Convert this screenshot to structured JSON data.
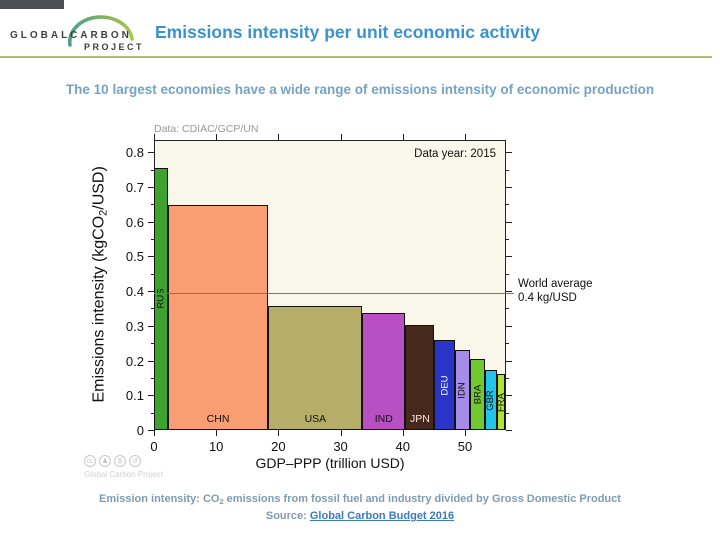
{
  "header": {
    "logo_word1": "GLOBAL",
    "logo_word2": "CARBON",
    "logo_word3": "PROJECT",
    "title": "Emissions intensity per unit economic activity",
    "rule_color": "#b6bd72",
    "title_color": "#3b93cd"
  },
  "subtitle": "The 10 largest economies have a wide range of emissions intensity of economic production",
  "chart_data": {
    "type": "bar",
    "variant": "variable-width-mekko",
    "data_note": "Data: CDIAC/GCP/UN",
    "year_note": "Data year: 2015",
    "xlabel": "GDP–PPP (trillion USD)",
    "ylabel_pre": "Emissions intensity (kgCO",
    "ylabel_sub": "2",
    "ylabel_post": "/USD)",
    "plot_bg": "#f8f7e9",
    "xlim": [
      0,
      56.6
    ],
    "ylim": [
      0,
      0.835
    ],
    "x_ticks": [
      {
        "value": 0,
        "label": "0"
      },
      {
        "value": 10,
        "label": "10"
      },
      {
        "value": 20,
        "label": "20"
      },
      {
        "value": 30,
        "label": "30"
      },
      {
        "value": 40,
        "label": "40"
      },
      {
        "value": 50,
        "label": "50"
      }
    ],
    "y_ticks": [
      {
        "value": 0,
        "label": "0"
      },
      {
        "value": 0.1,
        "label": "0.1"
      },
      {
        "value": 0.2,
        "label": "0.2"
      },
      {
        "value": 0.3,
        "label": "0.3"
      },
      {
        "value": 0.4,
        "label": "0.4"
      },
      {
        "value": 0.5,
        "label": "0.5"
      },
      {
        "value": 0.6,
        "label": "0.6"
      },
      {
        "value": 0.7,
        "label": "0.7"
      },
      {
        "value": 0.8,
        "label": "0.8"
      }
    ],
    "y_minor_ticks": [
      0.05,
      0.15,
      0.25,
      0.35,
      0.45,
      0.55,
      0.65,
      0.75
    ],
    "world_average": {
      "value": 0.395,
      "label_line1": "World average",
      "label_line2": "0.4 kg/USD"
    },
    "series": [
      {
        "code": "RUS",
        "x_start": 0,
        "x_end": 2.2,
        "value": 0.755,
        "color": "#3da32e",
        "label_orientation": "vertical",
        "label_color": "#111111"
      },
      {
        "code": "CHN",
        "x_start": 2.2,
        "x_end": 18.4,
        "value": 0.648,
        "color": "#f89e72",
        "label_orientation": "horizontal",
        "label_color": "#111111"
      },
      {
        "code": "USA",
        "x_start": 18.4,
        "x_end": 33.5,
        "value": 0.357,
        "color": "#b6ad68",
        "label_orientation": "horizontal",
        "label_color": "#111111"
      },
      {
        "code": "IND",
        "x_start": 33.5,
        "x_end": 40.4,
        "value": 0.337,
        "color": "#b84fc3",
        "label_orientation": "horizontal",
        "label_color": "#111111"
      },
      {
        "code": "JPN",
        "x_start": 40.4,
        "x_end": 45.1,
        "value": 0.302,
        "color": "#46281c",
        "label_orientation": "horizontal",
        "label_color": "#f7ead8"
      },
      {
        "code": "DEU",
        "x_start": 45.1,
        "x_end": 48.4,
        "value": 0.259,
        "color": "#2b34c8",
        "label_orientation": "vertical",
        "label_color": "#ffffff"
      },
      {
        "code": "IDN",
        "x_start": 48.4,
        "x_end": 50.8,
        "value": 0.23,
        "color": "#a58ce8",
        "label_orientation": "vertical",
        "label_color": "#111111"
      },
      {
        "code": "BRA",
        "x_start": 50.8,
        "x_end": 53.2,
        "value": 0.203,
        "color": "#72c832",
        "label_orientation": "vertical",
        "label_color": "#111111"
      },
      {
        "code": "GBR",
        "x_start": 53.2,
        "x_end": 55.1,
        "value": 0.172,
        "color": "#22c5e8",
        "label_orientation": "vertical",
        "label_color": "#111111"
      },
      {
        "code": "FRA",
        "x_start": 55.1,
        "x_end": 56.5,
        "value": 0.16,
        "color": "#abe636",
        "label_orientation": "vertical",
        "label_color": "#111111"
      }
    ]
  },
  "footer": {
    "caption_pre": "Emission intensity: CO",
    "caption_sub": "2",
    "caption_post": " emissions from fossil fuel and industry divided by Gross Domestic Product",
    "source_label": "Source: ",
    "source_link": "Global Carbon Budget 2016",
    "cc_icons": [
      "cc",
      "♟",
      "$",
      "↺"
    ],
    "cc_text": "Global Carbon Project"
  }
}
